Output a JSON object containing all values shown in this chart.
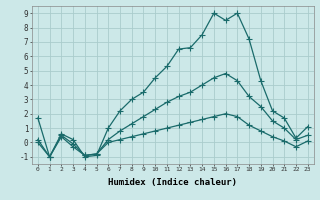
{
  "xlabel": "Humidex (Indice chaleur)",
  "background_color": "#cce8e8",
  "grid_color": "#aacccc",
  "line_color": "#1a6b6b",
  "xlim": [
    -0.5,
    23.5
  ],
  "ylim": [
    -1.5,
    9.5
  ],
  "xticks": [
    0,
    1,
    2,
    3,
    4,
    5,
    6,
    7,
    8,
    9,
    10,
    11,
    12,
    13,
    14,
    15,
    16,
    17,
    18,
    19,
    20,
    21,
    22,
    23
  ],
  "yticks": [
    -1,
    0,
    1,
    2,
    3,
    4,
    5,
    6,
    7,
    8,
    9
  ],
  "lines": [
    {
      "x": [
        0,
        1,
        2,
        3,
        4,
        5,
        6,
        7,
        8,
        9,
        10,
        11,
        12,
        13,
        14,
        15,
        16,
        17,
        18,
        19,
        20,
        21,
        22,
        23
      ],
      "y": [
        1.7,
        -1.0,
        0.6,
        0.2,
        -1.0,
        -0.9,
        1.0,
        2.2,
        3.0,
        3.5,
        4.5,
        5.3,
        6.5,
        6.6,
        7.5,
        9.0,
        8.5,
        9.0,
        7.2,
        4.3,
        2.2,
        1.7,
        0.3,
        1.1
      ],
      "marker": "+",
      "markersize": 4,
      "linewidth": 0.9
    },
    {
      "x": [
        0,
        1,
        2,
        3,
        4,
        5,
        6,
        7,
        8,
        9,
        10,
        11,
        12,
        13,
        14,
        15,
        16,
        17,
        18,
        19,
        20,
        21,
        22,
        23
      ],
      "y": [
        0.2,
        -1.0,
        0.5,
        -0.1,
        -0.9,
        -0.8,
        0.2,
        0.8,
        1.3,
        1.8,
        2.3,
        2.8,
        3.2,
        3.5,
        4.0,
        4.5,
        4.8,
        4.3,
        3.2,
        2.5,
        1.5,
        1.0,
        0.2,
        0.5
      ],
      "marker": "+",
      "markersize": 4,
      "linewidth": 0.9
    },
    {
      "x": [
        0,
        1,
        2,
        3,
        4,
        5,
        6,
        7,
        8,
        9,
        10,
        11,
        12,
        13,
        14,
        15,
        16,
        17,
        18,
        19,
        20,
        21,
        22,
        23
      ],
      "y": [
        0.0,
        -1.0,
        0.4,
        -0.3,
        -0.9,
        -0.8,
        0.0,
        0.2,
        0.4,
        0.6,
        0.8,
        1.0,
        1.2,
        1.4,
        1.6,
        1.8,
        2.0,
        1.8,
        1.2,
        0.8,
        0.4,
        0.1,
        -0.3,
        0.1
      ],
      "marker": "+",
      "markersize": 4,
      "linewidth": 0.9
    }
  ]
}
